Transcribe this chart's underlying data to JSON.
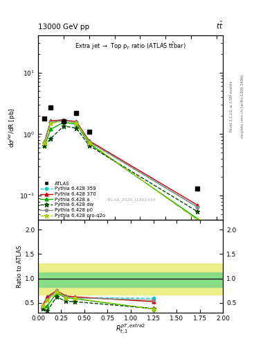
{
  "title_top": "13000 GeV pp",
  "title_right": "tt",
  "plot_title": "Extra jet → Top p$_T$ ratio (ATLAS t$\\bar{t}$bar)",
  "xlabel": "$R_{t,1}^{pT,extra2}$",
  "ylabel_main": "d$\\sigma^{fid}$/dR [pb]",
  "ylabel_ratio": "Ratio to ATLAS",
  "watermark": "ATLAS_2020_I1801434",
  "rivet_label": "Rivet 3.1.10, ≥ 3.5M events",
  "mcplots_label": "mcplots.cern.ch [arXiv:1306.3436]",
  "x_data": [
    0.05,
    0.1,
    0.2,
    0.3,
    0.4,
    1.25
  ],
  "atlas_y": [
    1.8,
    2.7,
    1.6,
    2.2,
    1.1,
    0.13
  ],
  "py359_y": [
    0.72,
    1.6,
    1.65,
    1.55,
    0.75,
    0.065
  ],
  "py370_y": [
    0.75,
    1.65,
    1.7,
    1.6,
    0.78,
    0.07
  ],
  "pya_y": [
    0.65,
    1.2,
    1.55,
    1.45,
    0.7,
    0.042
  ],
  "pydw_y": [
    0.65,
    0.85,
    1.35,
    1.25,
    0.65,
    0.055
  ],
  "pyp0_y": [
    0.72,
    1.55,
    1.65,
    1.55,
    0.75,
    0.065
  ],
  "pyproq2o_y": [
    0.72,
    1.5,
    1.6,
    1.5,
    0.73,
    0.04
  ],
  "ratio_x": [
    0.05,
    0.1,
    0.2,
    0.3,
    0.4,
    1.25
  ],
  "ratio_py359": [
    0.42,
    0.6,
    0.73,
    0.62,
    0.6,
    0.59
  ],
  "ratio_py370": [
    0.45,
    0.62,
    0.75,
    0.64,
    0.62,
    0.52
  ],
  "ratio_pya": [
    0.4,
    0.43,
    0.7,
    0.6,
    0.58,
    0.37
  ],
  "ratio_pydw": [
    0.38,
    0.33,
    0.62,
    0.53,
    0.52,
    0.38
  ],
  "ratio_pyp0": [
    0.43,
    0.57,
    0.75,
    0.62,
    0.6,
    0.55
  ],
  "ratio_pyproq2o": [
    0.43,
    0.55,
    0.72,
    0.6,
    0.59,
    0.37
  ],
  "band_green_lo": 0.82,
  "band_green_hi": 1.12,
  "band_yellow_lo": 0.67,
  "band_yellow_hi": 1.3,
  "xlim_main": [
    0.0,
    1.45
  ],
  "ylim_main_log": [
    0.04,
    40.0
  ],
  "xlim_ratio": [
    0.0,
    2.0
  ],
  "ylim_ratio": [
    0.3,
    2.2
  ],
  "color_py359": "#00cccc",
  "color_py370": "#cc0000",
  "color_pya": "#00aa00",
  "color_pydw": "#004400",
  "color_pyp0": "#888888",
  "color_pyproq2o": "#aacc00",
  "color_atlas": "black",
  "color_band_green": "#88dd88",
  "color_band_yellow": "#eeee88"
}
